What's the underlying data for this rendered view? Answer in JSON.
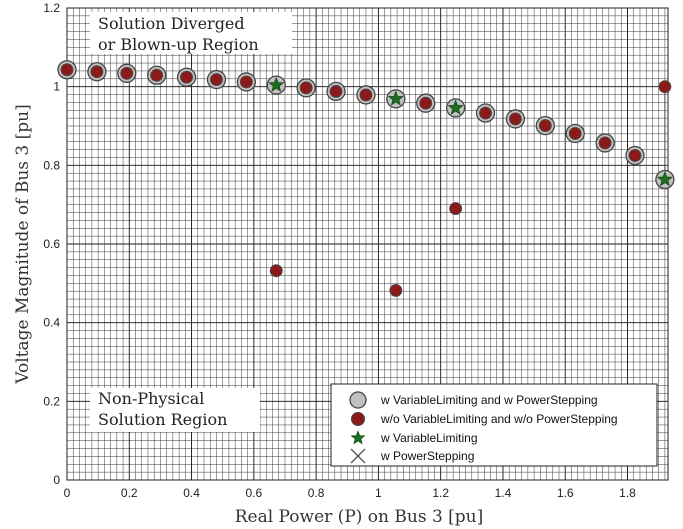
{
  "chart_data": {
    "type": "scatter",
    "xlabel": "Real Power (P) on Bus 3 [pu]",
    "ylabel": "Voltage Magnitude of Bus 3 [pu]",
    "xlim": [
      0,
      1.93
    ],
    "ylim": [
      0,
      1.2
    ],
    "xticks": [
      "0",
      "0.2",
      "0.4",
      "0.6",
      "0.8",
      "1",
      "1.2",
      "1.4",
      "1.6",
      "1.8"
    ],
    "yticks": [
      "0",
      "0.2",
      "0.4",
      "0.6",
      "0.8",
      "1",
      "1.2"
    ],
    "grid": true,
    "legend_position": "bottom-right",
    "annotations": {
      "top_region": [
        "Solution Diverged",
        "or Blown-up Region"
      ],
      "bottom_region": [
        "Non-Physical",
        "Solution Region"
      ]
    },
    "series": [
      {
        "name": "w VariableLimiting and w PowerStepping",
        "marker": "circle",
        "color": "#c0c0c0",
        "x": [
          0,
          0.096,
          0.192,
          0.288,
          0.384,
          0.48,
          0.576,
          0.672,
          0.768,
          0.864,
          0.96,
          1.056,
          1.152,
          1.248,
          1.344,
          1.44,
          1.536,
          1.632,
          1.728,
          1.824,
          1.92
        ],
        "y": [
          1.043,
          1.038,
          1.034,
          1.029,
          1.024,
          1.018,
          1.012,
          1.004,
          0.997,
          0.988,
          0.979,
          0.969,
          0.958,
          0.946,
          0.933,
          0.918,
          0.901,
          0.881,
          0.857,
          0.825,
          0.764
        ]
      },
      {
        "name": "w/o VariableLimiting and w/o PowerStepping",
        "marker": "circle",
        "color": "#8b1a1a",
        "x": [
          0,
          0.096,
          0.192,
          0.288,
          0.384,
          0.48,
          0.576,
          0.672,
          0.768,
          0.864,
          0.96,
          1.056,
          1.152,
          1.248,
          1.344,
          1.44,
          1.536,
          1.632,
          1.728,
          1.824,
          1.92
        ],
        "y": [
          1.043,
          1.038,
          1.034,
          1.029,
          1.024,
          1.018,
          1.012,
          0.532,
          0.997,
          0.988,
          0.979,
          0.482,
          0.958,
          0.69,
          0.933,
          0.918,
          0.901,
          0.881,
          0.857,
          0.825,
          1.0
        ]
      },
      {
        "name": "w VariableLimiting",
        "marker": "star",
        "color": "#1f6b1f",
        "x": [
          0.672,
          1.056,
          1.248,
          1.92
        ],
        "y": [
          1.004,
          0.969,
          0.946,
          0.764
        ]
      },
      {
        "name": "w PowerStepping",
        "marker": "x",
        "color": "#555555",
        "x": [],
        "y": []
      }
    ]
  }
}
